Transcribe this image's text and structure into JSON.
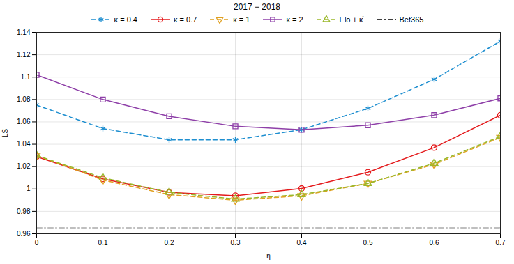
{
  "chart_data": {
    "type": "line",
    "title": "2017 − 2018",
    "x_label": "η",
    "y_label": "LS",
    "x": [
      0,
      0.1,
      0.2,
      0.3,
      0.4,
      0.5,
      0.6,
      0.7
    ],
    "series": [
      {
        "name": "κ = 0.4",
        "color": "#1f8fd0",
        "marker": "asterisk",
        "line_style": "dashed",
        "values": [
          1.075,
          1.054,
          1.044,
          1.044,
          1.053,
          1.072,
          1.098,
          1.132
        ]
      },
      {
        "name": "κ = 0.7",
        "color": "#e41a1c",
        "marker": "circle",
        "line_style": "solid",
        "values": [
          1.029,
          1.009,
          0.997,
          0.994,
          1.0005,
          1.015,
          1.037,
          1.066
        ]
      },
      {
        "name": "κ = 1",
        "color": "#e0a020",
        "marker": "triangle-down",
        "line_style": "dashed",
        "values": [
          1.03,
          1.008,
          0.995,
          0.99,
          0.994,
          1.005,
          1.022,
          1.046
        ]
      },
      {
        "name": "κ = 2",
        "color": "#8e3fa8",
        "marker": "square",
        "line_style": "solid",
        "values": [
          1.102,
          1.08,
          1.065,
          1.056,
          1.053,
          1.057,
          1.066,
          1.081
        ]
      },
      {
        "name": "Elo + κ̂",
        "color": "#9ab82a",
        "marker": "triangle",
        "line_style": "dashed",
        "values": [
          1.03,
          1.01,
          0.997,
          0.991,
          0.995,
          1.005,
          1.023,
          1.047
        ]
      },
      {
        "name": "Bet365",
        "color": "#000000",
        "marker": "none",
        "line_style": "dashdot",
        "values": [
          0.965,
          0.965,
          0.965,
          0.965,
          0.965,
          0.965,
          0.965,
          0.965
        ]
      }
    ],
    "xlim": [
      0,
      0.7
    ],
    "xticks": [
      0,
      0.1,
      0.2,
      0.3,
      0.4,
      0.5,
      0.6,
      0.7
    ],
    "ylim": [
      0.96,
      1.14
    ],
    "yticks": [
      0.96,
      0.98,
      1,
      1.02,
      1.04,
      1.06,
      1.08,
      1.1,
      1.12,
      1.14
    ],
    "grid": true,
    "legend": "top"
  }
}
